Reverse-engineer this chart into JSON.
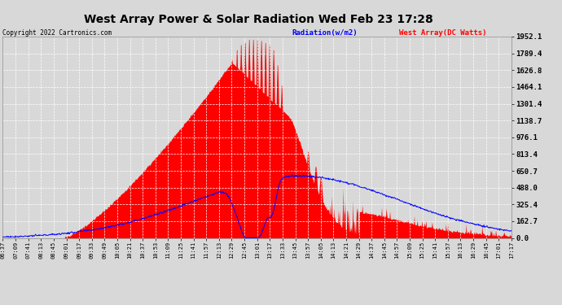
{
  "title": "West Array Power & Solar Radiation Wed Feb 23 17:28",
  "copyright": "Copyright 2022 Cartronics.com",
  "legend_radiation": "Radiation(w/m2)",
  "legend_west": "West Array(DC Watts)",
  "ylabel_values": [
    0.0,
    162.7,
    325.4,
    488.0,
    650.7,
    813.4,
    976.1,
    1138.7,
    1301.4,
    1464.1,
    1626.8,
    1789.4,
    1952.1
  ],
  "ymax": 1952.1,
  "bg_color": "#d8d8d8",
  "plot_bg_color": "#d8d8d8",
  "grid_color": "#ffffff",
  "radiation_color": "#0000ff",
  "west_array_color": "#ff0000",
  "title_color": "#000000",
  "radiation_legend_color": "#0000ff",
  "west_legend_color": "#ff0000",
  "x_tick_labels": [
    "06:37",
    "07:09",
    "07:41",
    "08:13",
    "08:45",
    "09:01",
    "09:17",
    "09:33",
    "09:49",
    "10:05",
    "10:21",
    "10:37",
    "10:53",
    "11:09",
    "11:25",
    "11:41",
    "11:57",
    "12:13",
    "12:29",
    "12:45",
    "13:01",
    "13:17",
    "13:33",
    "13:45",
    "13:57",
    "14:05",
    "14:13",
    "14:21",
    "14:29",
    "14:37",
    "14:45",
    "14:57",
    "15:09",
    "15:25",
    "15:41",
    "15:57",
    "16:13",
    "16:29",
    "16:45",
    "17:01",
    "17:17"
  ]
}
